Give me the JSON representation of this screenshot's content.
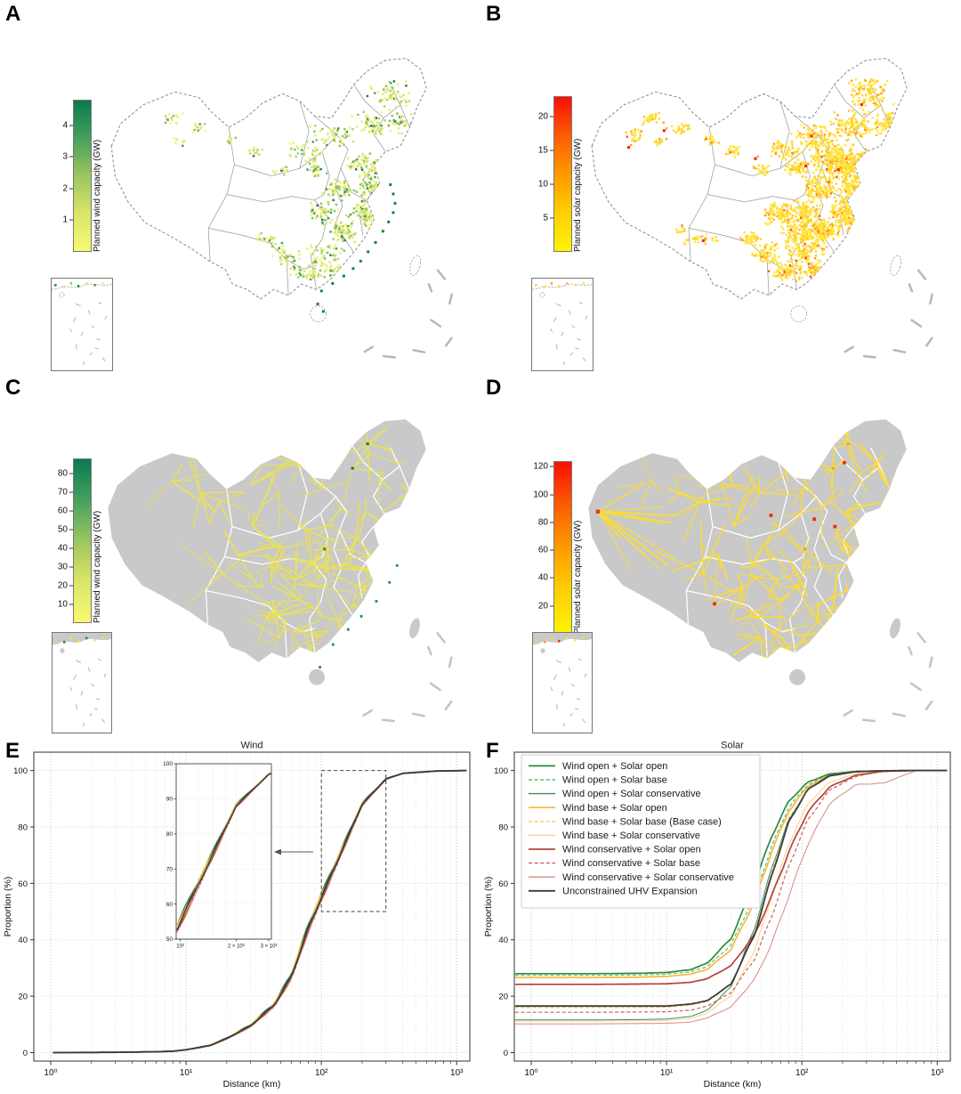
{
  "panels": {
    "A": {
      "label": "A",
      "type": "scatter-map",
      "colorbar": {
        "label": "Planned wind capacity (GW)",
        "ticks": [
          1,
          2,
          3,
          4
        ],
        "vmax": 4.8,
        "gradient": [
          "#f9f871",
          "#d9e668",
          "#9cc560",
          "#45a05c",
          "#0a7a4e"
        ]
      },
      "palette": {
        "low": [
          "#f1f37e",
          "#e7ee6e",
          "#d8e668"
        ],
        "mid": [
          "#b4d164",
          "#8cbf5e"
        ],
        "high": [
          "#3f9d58",
          "#0e7d52"
        ]
      }
    },
    "B": {
      "label": "B",
      "type": "scatter-map",
      "colorbar": {
        "label": "Planned solar capacity (GW)",
        "ticks": [
          5,
          10,
          15,
          20
        ],
        "vmax": 23,
        "gradient": [
          "#fdf403",
          "#fecf02",
          "#fd9a01",
          "#fb5c03",
          "#f90f06"
        ]
      },
      "palette": {
        "low": [
          "#ffe935",
          "#ffe14d",
          "#ffd92e"
        ],
        "mid": [
          "#ffc32b",
          "#ff9d1e"
        ],
        "high": [
          "#f5571c",
          "#f42a10"
        ]
      }
    },
    "C": {
      "label": "C",
      "type": "network-map",
      "colorbar": {
        "label": "Planned wind capacity (GW)",
        "ticks": [
          10,
          20,
          30,
          40,
          50,
          60,
          70,
          80
        ],
        "vmax": 88,
        "gradient": [
          "#f9f871",
          "#d9e668",
          "#9cc560",
          "#45a05c",
          "#0a7a4e"
        ]
      },
      "palette": {
        "ray": "#ece44a",
        "hub": "#1d7a4a",
        "hub2": "#128a5a"
      }
    },
    "D": {
      "label": "D",
      "type": "network-map",
      "colorbar": {
        "label": "Planned solar capacity (GW)",
        "ticks": [
          20,
          40,
          60,
          80,
          100,
          120
        ],
        "vmax": 124,
        "gradient": [
          "#fdf403",
          "#fecf02",
          "#fd9a01",
          "#fb5c03",
          "#f90f06"
        ]
      },
      "palette": {
        "ray": "#ffdf26",
        "hub": "#f42a10",
        "hub2": "#ff9d1e"
      }
    },
    "E": {
      "label": "E"
    },
    "F": {
      "label": "F"
    }
  },
  "chart_data": [
    {
      "type": "line",
      "panel": "E",
      "title": "Wind",
      "xlabel": "Distance (km)",
      "ylabel": "Proportion (%)",
      "xscale": "log",
      "xlim": [
        0.75,
        1250
      ],
      "ylim": [
        0,
        100
      ],
      "grid": true,
      "yticks": [
        0,
        20,
        40,
        60,
        80,
        100
      ],
      "xtick_values": [
        1,
        10,
        100,
        1000
      ],
      "xtick_labels": [
        "10⁰",
        "10¹",
        "10²",
        "10³"
      ],
      "x": [
        1,
        3,
        6,
        8,
        10,
        15,
        20,
        30,
        45,
        60,
        80,
        100,
        140,
        200,
        300,
        400,
        700,
        1200
      ],
      "base_y": [
        0,
        0.1,
        0.3,
        0.5,
        1,
        2.5,
        5,
        9.5,
        17,
        27,
        44,
        55,
        71,
        88,
        97,
        99,
        99.8,
        100
      ],
      "series": [
        {
          "name": "Wind open + Solar open",
          "color": "#2e8b3d",
          "dash": "solid",
          "width": 1.7,
          "offset": 1.2
        },
        {
          "name": "Wind open + Solar base",
          "color": "#66bb6a",
          "dash": "dashed",
          "width": 1.2,
          "offset": 0.8
        },
        {
          "name": "Wind open + Solar conservative",
          "color": "#388e53",
          "dash": "solid",
          "width": 1.0,
          "offset": 0.5
        },
        {
          "name": "Wind base + Solar open",
          "color": "#f6b93b",
          "dash": "solid",
          "width": 1.7,
          "offset": 0.6
        },
        {
          "name": "Wind base + Solar base (Base case)",
          "color": "#f8c471",
          "dash": "dashed",
          "width": 1.2,
          "offset": 0.2
        },
        {
          "name": "Wind base + Solar conservative",
          "color": "#fad390",
          "dash": "solid",
          "width": 1.0,
          "offset": -0.2
        },
        {
          "name": "Wind conservative + Solar open",
          "color": "#b2443a",
          "dash": "solid",
          "width": 1.7,
          "offset": -0.6
        },
        {
          "name": "Wind conservative + Solar base",
          "color": "#cd6155",
          "dash": "dashed",
          "width": 1.2,
          "offset": -1.0
        },
        {
          "name": "Wind conservative + Solar conservative",
          "color": "#d98880",
          "dash": "solid",
          "width": 1.0,
          "offset": -1.4
        },
        {
          "name": "Unconstrained UHV Expansion",
          "color": "#3b3b3b",
          "dash": "solid",
          "width": 1.8,
          "offset": 0
        }
      ],
      "inset": {
        "xlim": [
          95,
          310
        ],
        "ylim": [
          50,
          100
        ],
        "yticks": [
          50,
          60,
          70,
          80,
          90,
          100
        ],
        "xtick_values": [
          100,
          200,
          300
        ],
        "xtick_labels": [
          "10²",
          "2 × 10²",
          "3 × 10²"
        ],
        "region": {
          "x": [
            100,
            300
          ],
          "y": [
            50,
            100
          ]
        }
      }
    },
    {
      "type": "line",
      "panel": "F",
      "title": "Solar",
      "xlabel": "Distance (km)",
      "ylabel": "Proportion (%)",
      "xscale": "log",
      "xlim": [
        0.75,
        1250
      ],
      "ylim": [
        0,
        100
      ],
      "grid": true,
      "legend_position": "upper left",
      "yticks": [
        0,
        20,
        40,
        60,
        80,
        100
      ],
      "xtick_values": [
        1,
        10,
        100,
        1000
      ],
      "xtick_labels": [
        "10⁰",
        "10¹",
        "10²",
        "10³"
      ],
      "x": [
        1,
        3,
        6,
        10,
        15,
        20,
        30,
        45,
        60,
        80,
        110,
        160,
        250,
        400,
        700,
        1200
      ],
      "series": [
        {
          "name": "Wind open + Solar open",
          "color": "#2e8b3d",
          "dash": "solid",
          "width": 1.7,
          "values": [
            28,
            28,
            28.1,
            28.4,
            29.4,
            31.7,
            40.5,
            60.3,
            76.9,
            89.1,
            95.8,
            98.8,
            99.7,
            99.9,
            100,
            100
          ]
        },
        {
          "name": "Wind open + Solar base",
          "color": "#66bb6a",
          "dash": "dashed",
          "width": 1.2,
          "values": [
            27.4,
            27.4,
            27.5,
            27.8,
            28.6,
            30.5,
            38.2,
            56,
            73.3,
            86.9,
            94.9,
            98.5,
            99.6,
            99.9,
            100,
            100
          ]
        },
        {
          "name": "Wind open + Solar conservative",
          "color": "#388e53",
          "dash": "solid",
          "width": 1.0,
          "values": [
            11.6,
            11.6,
            11.7,
            11.9,
            12.8,
            15,
            23.4,
            44.6,
            65.6,
            82.7,
            93.1,
            97.9,
            99.5,
            99.9,
            100,
            100
          ]
        },
        {
          "name": "Wind base + Solar open",
          "color": "#f6b93b",
          "dash": "solid",
          "width": 1.7,
          "values": [
            26.6,
            26.6,
            26.7,
            27,
            27.8,
            29.5,
            36.6,
            54,
            71.5,
            85.6,
            94.3,
            98.3,
            99.6,
            99.9,
            100,
            100
          ]
        },
        {
          "name": "Wind base + Solar base (Base case)",
          "color": "#f8c471",
          "dash": "dashed",
          "width": 1.2,
          "values": [
            16,
            16,
            16,
            16.1,
            16.8,
            18.1,
            24.4,
            43,
            64,
            82.6,
            93.5,
            98.3,
            99.6,
            99.9,
            100,
            100
          ]
        },
        {
          "name": "Wind base + Solar conservative",
          "color": "#fad390",
          "dash": "solid",
          "width": 1.0,
          "values": [
            11.2,
            11.2,
            11.3,
            11.4,
            12.1,
            14,
            20.3,
            36.7,
            55.3,
            74,
            88,
            95.9,
            98.9,
            99.7,
            100,
            100
          ]
        },
        {
          "name": "Wind conservative + Solar open",
          "color": "#b2443a",
          "dash": "solid",
          "width": 1.7,
          "values": [
            24.2,
            24.2,
            24.3,
            24.4,
            24.9,
            26.2,
            30.8,
            42,
            55.6,
            71.1,
            85.2,
            94.2,
            98.3,
            99.7,
            100,
            100
          ]
        },
        {
          "name": "Wind conservative + Solar base",
          "color": "#cd6155",
          "dash": "dashed",
          "width": 1.2,
          "values": [
            14.3,
            14.3,
            14.4,
            14.5,
            15,
            16.5,
            21.3,
            33.4,
            48.5,
            66,
            82.3,
            93.1,
            97.9,
            99.8,
            100,
            100
          ]
        },
        {
          "name": "Wind conservative + Solar conservative",
          "color": "#d98880",
          "dash": "solid",
          "width": 1.0,
          "values": [
            10.2,
            10.2,
            10.3,
            10.4,
            10.8,
            12.3,
            16.2,
            26.1,
            38.8,
            55.5,
            73.7,
            88.3,
            95,
            95.5,
            100,
            100
          ]
        },
        {
          "name": "Unconstrained UHV Expansion",
          "color": "#3b3b3b",
          "dash": "solid",
          "width": 1.8,
          "values": [
            16.5,
            16.5,
            16.5,
            16.5,
            17.2,
            18.4,
            24.3,
            42.2,
            63,
            81.7,
            93.2,
            98.2,
            99.6,
            99.9,
            100,
            100
          ]
        }
      ]
    }
  ]
}
